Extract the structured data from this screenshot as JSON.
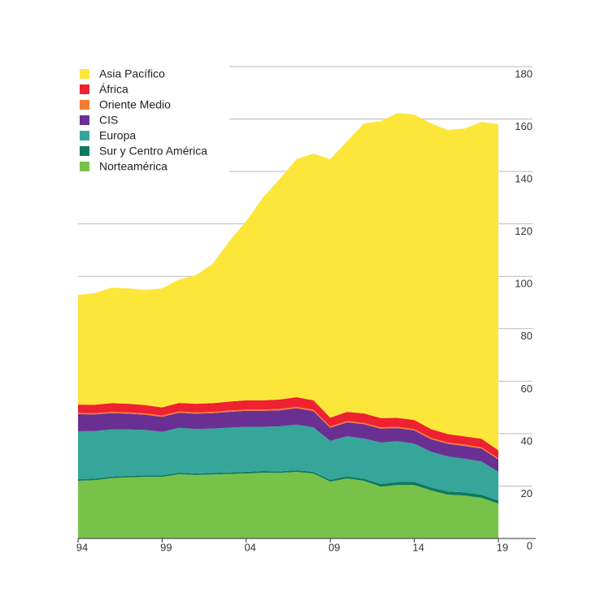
{
  "chart_data": {
    "type": "stacked-area",
    "x": [
      1994,
      1995,
      1996,
      1997,
      1998,
      1999,
      2000,
      2001,
      2002,
      2003,
      2004,
      2005,
      2006,
      2007,
      2008,
      2009,
      2010,
      2011,
      2012,
      2013,
      2014,
      2015,
      2016,
      2017,
      2018,
      2019
    ],
    "xlim": [
      1994,
      2019
    ],
    "xticks": [
      {
        "value": 1994,
        "label": "94"
      },
      {
        "value": 1999,
        "label": "99"
      },
      {
        "value": 2004,
        "label": "04"
      },
      {
        "value": 2009,
        "label": "09"
      },
      {
        "value": 2014,
        "label": "14"
      },
      {
        "value": 2019,
        "label": "19"
      }
    ],
    "ylim": [
      0,
      180
    ],
    "yticks": [
      0,
      20,
      40,
      60,
      80,
      100,
      120,
      140,
      160,
      180
    ],
    "grid": true,
    "legend": "top-left",
    "series": [
      {
        "name": "Asia Pacífico",
        "color": "#fde63a",
        "values": [
          41.8,
          42.6,
          44.1,
          44.0,
          43.9,
          45.4,
          47.1,
          49.0,
          53.1,
          61.2,
          68.4,
          77.4,
          84.2,
          90.8,
          94.1,
          98.6,
          103.2,
          110.6,
          113.3,
          116.3,
          116.5,
          116.6,
          116.0,
          117.5,
          120.9,
          124.4
        ]
      },
      {
        "name": "África",
        "color": "#ee2230",
        "values": [
          3.2,
          3.2,
          3.3,
          3.3,
          3.2,
          3.1,
          3.2,
          3.3,
          3.3,
          3.4,
          3.5,
          3.5,
          3.6,
          3.7,
          3.6,
          3.4,
          3.5,
          3.6,
          3.5,
          3.4,
          3.5,
          3.3,
          3.2,
          3.1,
          3.2,
          3.0
        ]
      },
      {
        "name": "Oriente Medio",
        "color": "#f47c30",
        "values": [
          0.5,
          0.5,
          0.5,
          0.5,
          0.5,
          0.5,
          0.5,
          0.5,
          0.5,
          0.5,
          0.5,
          0.5,
          0.5,
          0.5,
          0.5,
          0.5,
          0.5,
          0.5,
          0.5,
          0.5,
          0.5,
          0.5,
          0.5,
          0.5,
          0.5,
          0.5
        ]
      },
      {
        "name": "CIS",
        "color": "#6a2f92",
        "values": [
          6.5,
          6.3,
          6.2,
          6.0,
          5.8,
          5.7,
          5.8,
          5.8,
          5.9,
          6.0,
          6.1,
          6.1,
          6.1,
          6.3,
          6.2,
          5.0,
          5.3,
          5.5,
          5.3,
          5.0,
          5.0,
          4.8,
          4.8,
          4.9,
          4.9,
          4.7
        ]
      },
      {
        "name": "Europa",
        "color": "#36a69a",
        "values": [
          18.3,
          18.2,
          18.0,
          17.7,
          17.3,
          16.6,
          17.1,
          17.0,
          16.9,
          17.1,
          17.2,
          16.9,
          17.2,
          17.4,
          17.0,
          14.8,
          15.3,
          15.3,
          15.8,
          15.6,
          14.6,
          13.6,
          13.4,
          12.8,
          12.7,
          10.9
        ]
      },
      {
        "name": "Sur y Centro América",
        "color": "#0c7a5e",
        "values": [
          0.6,
          0.6,
          0.6,
          0.6,
          0.6,
          0.6,
          0.6,
          0.6,
          0.6,
          0.6,
          0.6,
          0.6,
          0.6,
          0.6,
          0.6,
          0.7,
          0.8,
          0.8,
          1.0,
          1.1,
          1.2,
          1.2,
          1.2,
          1.2,
          1.2,
          1.2
        ]
      },
      {
        "name": "Norteamérica",
        "color": "#79c24a",
        "values": [
          22.0,
          22.2,
          23.0,
          23.3,
          23.5,
          23.5,
          24.5,
          24.2,
          24.4,
          24.6,
          24.8,
          25.1,
          25.0,
          25.4,
          24.8,
          21.7,
          22.9,
          22.0,
          19.8,
          20.4,
          20.4,
          18.3,
          16.7,
          16.4,
          15.5,
          13.3
        ]
      }
    ]
  }
}
